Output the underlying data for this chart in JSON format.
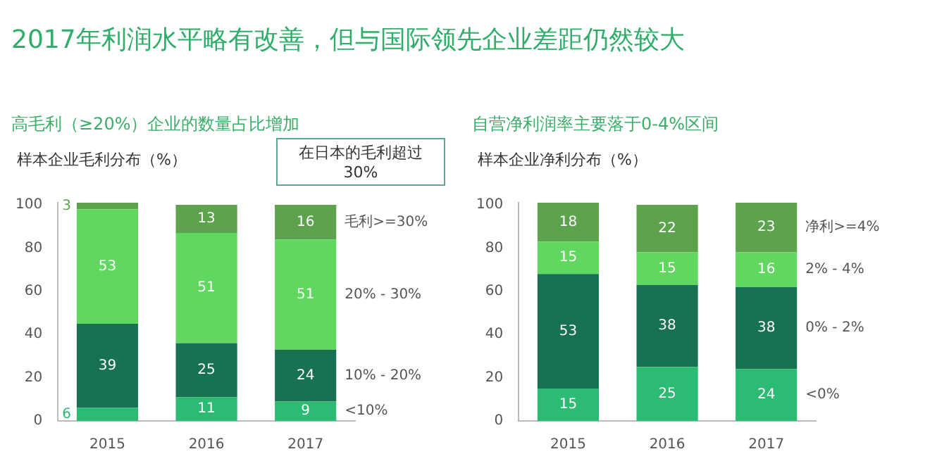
{
  "chart_data": [
    {
      "type": "bar",
      "title": "2017年利润水平略有改善，但与国际领先企业差距仍然较大",
      "subtitle": "高毛利（≥20%）企业的数量占比增加",
      "ylabel": "样本企业毛利分布（%）",
      "stacked": true,
      "data_labels": true,
      "categories": [
        "2015",
        "2016",
        "2017"
      ],
      "ylim": [
        0,
        101
      ],
      "yticks": [
        0,
        20,
        40,
        60,
        80,
        100
      ],
      "annotations": [
        "在日本的毛利超过30%"
      ],
      "series": [
        {
          "name": "<10%",
          "color": "#2bbb72",
          "values": [
            6,
            11,
            9
          ]
        },
        {
          "name": "10% - 20%",
          "color": "#187252",
          "values": [
            39,
            25,
            24
          ]
        },
        {
          "name": "20% - 30%",
          "color": "#60d860",
          "values": [
            53,
            51,
            51
          ]
        },
        {
          "name": "毛利>=30%",
          "color": "#5da24c",
          "values": [
            3,
            13,
            16
          ]
        }
      ]
    },
    {
      "type": "bar",
      "subtitle": "自营净利润率主要落于0-4%区间",
      "ylabel": "样本企业净利分布（%）",
      "stacked": true,
      "data_labels": true,
      "categories": [
        "2015",
        "2016",
        "2017"
      ],
      "ylim": [
        0,
        101
      ],
      "yticks": [
        0,
        20,
        40,
        60,
        80,
        100
      ],
      "series": [
        {
          "name": "<0%",
          "color": "#2bbb72",
          "values": [
            15,
            25,
            24
          ]
        },
        {
          "name": "0% - 2%",
          "color": "#187252",
          "values": [
            53,
            38,
            38
          ]
        },
        {
          "name": "2% - 4%",
          "color": "#60d860",
          "values": [
            15,
            15,
            16
          ]
        },
        {
          "name": "净利>=4%",
          "color": "#5da24c",
          "values": [
            18,
            22,
            23
          ]
        }
      ]
    }
  ]
}
